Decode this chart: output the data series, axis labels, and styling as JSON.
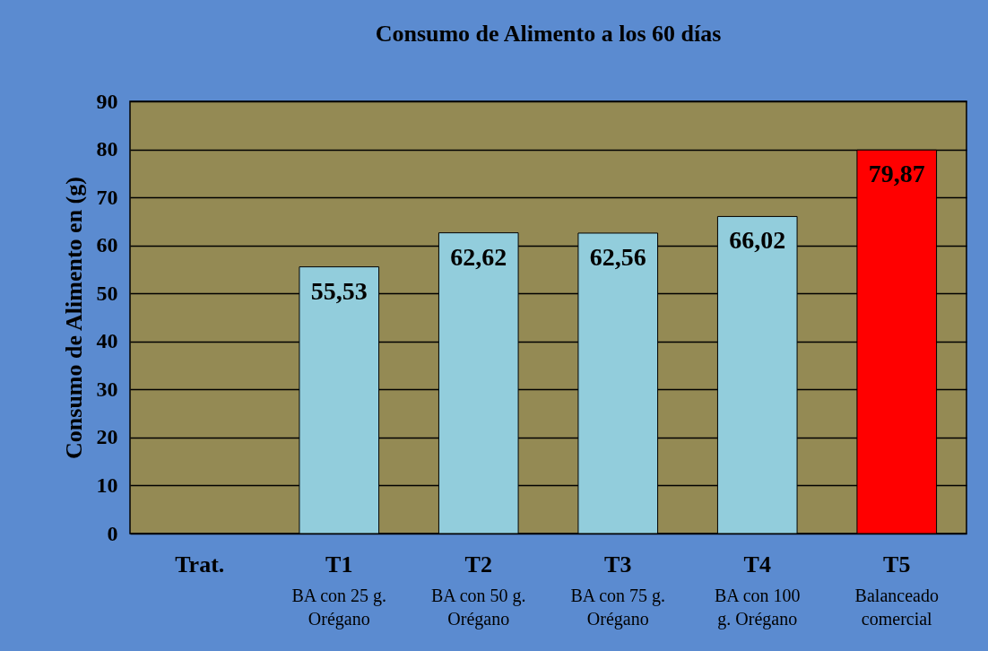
{
  "chart_data": {
    "type": "bar",
    "title": "Consumo de Alimento a  los 60 días",
    "ylabel": "Consumo de Alimento en (g)",
    "categories": [
      "Trat.",
      "T1\nBA con 25 g.\nOrégano",
      "T2\nBA con 50 g.\nOrégano",
      "T3\nBA con 75 g.\nOrégano",
      "T4\nBA con 100\ng. Orégano",
      "T5\nBalanceado\ncomercial"
    ],
    "values": [
      null,
      55.53,
      62.62,
      62.56,
      66.02,
      79.87
    ],
    "colors": [
      "#92cddc",
      "#92cddc",
      "#92cddc",
      "#92cddc",
      "#92cddc",
      "#ff0000"
    ],
    "value_labels": [
      null,
      "55,53",
      "62,62",
      "62,56",
      "66,02",
      "79,87"
    ],
    "ylim": [
      0,
      90
    ],
    "yticks": [
      0,
      10,
      20,
      30,
      40,
      50,
      60,
      70,
      80,
      90
    ],
    "grid": "y"
  }
}
